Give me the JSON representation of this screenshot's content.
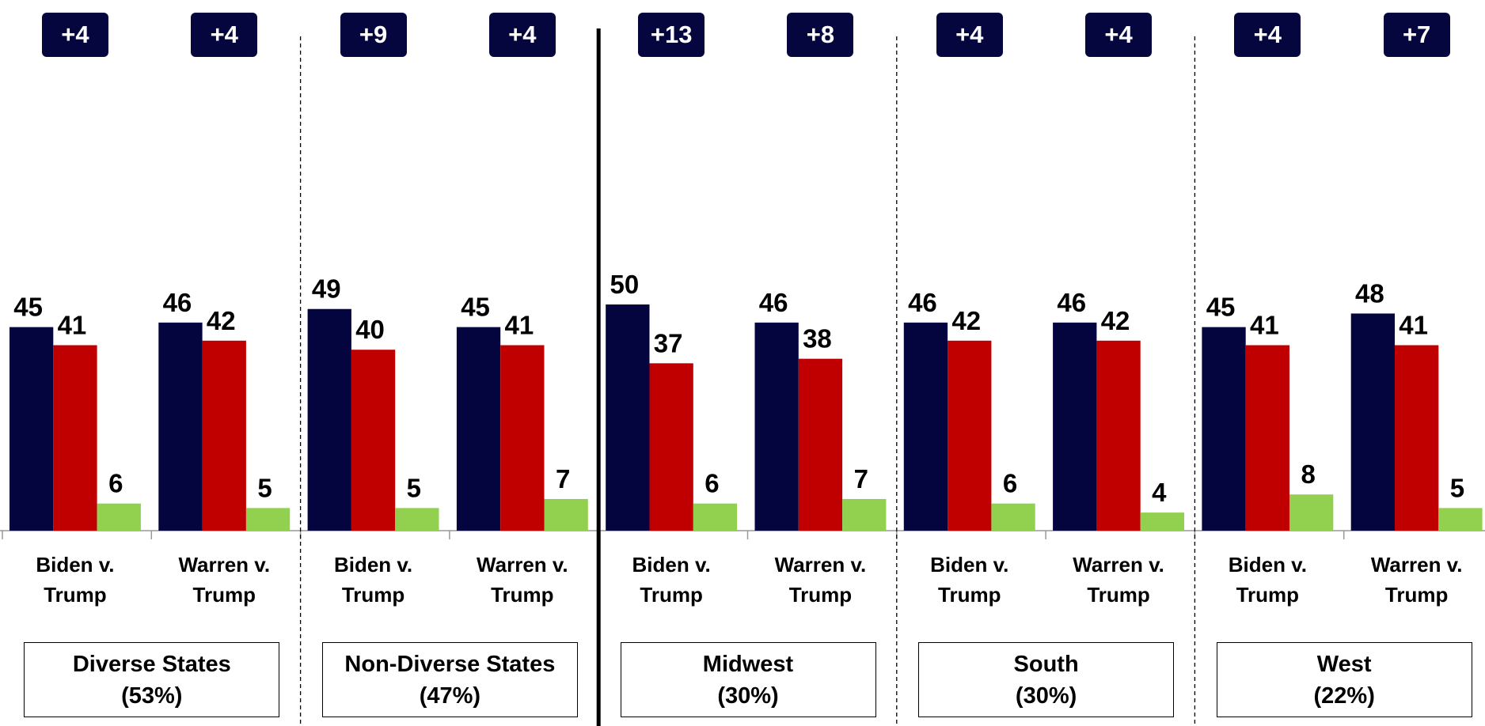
{
  "chart_data": {
    "type": "bar",
    "categories": [
      "Biden v. Trump",
      "Warren v. Trump",
      "Biden v. Trump",
      "Warren v. Trump",
      "Biden v. Trump",
      "Warren v. Trump",
      "Biden v. Trump",
      "Warren v. Trump",
      "Biden v. Trump",
      "Warren v. Trump"
    ],
    "series": [
      {
        "color": "#04043f",
        "values": [
          45,
          46,
          49,
          45,
          50,
          46,
          46,
          46,
          45,
          48
        ]
      },
      {
        "color": "#c00000",
        "values": [
          41,
          42,
          40,
          41,
          37,
          38,
          42,
          42,
          41,
          41
        ]
      },
      {
        "color": "#92d050",
        "values": [
          6,
          5,
          5,
          7,
          6,
          7,
          6,
          4,
          8,
          5
        ]
      }
    ],
    "margins": [
      {
        "value": 4,
        "label": "+4"
      },
      {
        "value": 4,
        "label": "+4"
      },
      {
        "value": 9,
        "label": "+9"
      },
      {
        "value": 4,
        "label": "+4"
      },
      {
        "value": 13,
        "label": "+13"
      },
      {
        "value": 8,
        "label": "+8"
      },
      {
        "value": 4,
        "label": "+4"
      },
      {
        "value": 4,
        "label": "+4"
      },
      {
        "value": 4,
        "label": "+4"
      },
      {
        "value": 7,
        "label": "+7"
      }
    ],
    "segments": [
      {
        "name": "Diverse States",
        "share": "(53%)"
      },
      {
        "name": "Non-Diverse States",
        "share": "(47%)"
      },
      {
        "name": "Midwest",
        "share": "(30%)"
      },
      {
        "name": "South",
        "share": "(30%)"
      },
      {
        "name": "West",
        "share": "(22%)"
      }
    ],
    "ylim": [
      0,
      100
    ]
  }
}
